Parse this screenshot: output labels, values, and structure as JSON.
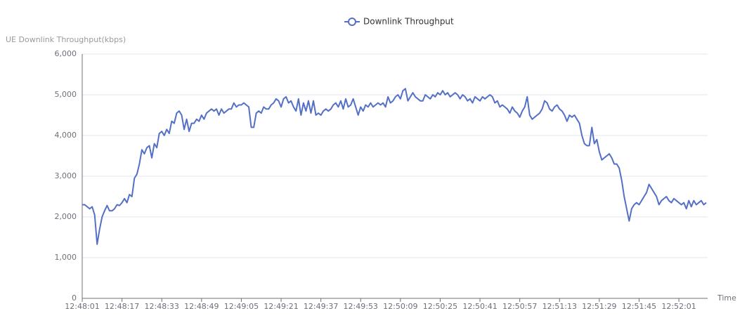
{
  "chart_data": {
    "type": "line",
    "y_axis_label": "UE Downlink Throughput(kbps)",
    "x_axis_label": "Time",
    "legend": "top",
    "grid": true,
    "ylim": [
      0,
      6000
    ],
    "yticks": [
      0,
      {
        "value": 1000,
        "label": "1,000"
      },
      {
        "value": 2000,
        "label": "2,000"
      },
      {
        "value": 3000,
        "label": "3,000"
      },
      {
        "value": 4000,
        "label": "4,000"
      },
      {
        "value": 5000,
        "label": "5,000"
      },
      {
        "value": 6000,
        "label": "6,000"
      }
    ],
    "categories": [
      "12:48:01",
      null,
      null,
      null,
      null,
      null,
      null,
      null,
      null,
      null,
      null,
      null,
      null,
      null,
      null,
      null,
      "12:48:17",
      null,
      null,
      null,
      null,
      null,
      null,
      null,
      null,
      null,
      null,
      null,
      null,
      null,
      null,
      null,
      "12:48:33",
      null,
      null,
      null,
      null,
      null,
      null,
      null,
      null,
      null,
      null,
      null,
      null,
      null,
      null,
      null,
      "12:48:49",
      null,
      null,
      null,
      null,
      null,
      null,
      null,
      null,
      null,
      null,
      null,
      null,
      null,
      null,
      null,
      "12:49:05",
      null,
      null,
      null,
      null,
      null,
      null,
      null,
      null,
      null,
      null,
      null,
      null,
      null,
      null,
      null,
      "12:49:21",
      null,
      null,
      null,
      null,
      null,
      null,
      null,
      null,
      null,
      null,
      null,
      null,
      null,
      null,
      null,
      "12:49:37",
      null,
      null,
      null,
      null,
      null,
      null,
      null,
      null,
      null,
      null,
      null,
      null,
      null,
      null,
      null,
      "12:49:53",
      null,
      null,
      null,
      null,
      null,
      null,
      null,
      null,
      null,
      null,
      null,
      null,
      null,
      null,
      null,
      "12:50:09",
      null,
      null,
      null,
      null,
      null,
      null,
      null,
      null,
      null,
      null,
      null,
      null,
      null,
      null,
      null,
      "12:50:25",
      null,
      null,
      null,
      null,
      null,
      null,
      null,
      null,
      null,
      null,
      null,
      null,
      null,
      null,
      null,
      "12:50:41",
      null,
      null,
      null,
      null,
      null,
      null,
      null,
      null,
      null,
      null,
      null,
      null,
      null,
      null,
      null,
      "12:50:57",
      null,
      null,
      null,
      null,
      null,
      null,
      null,
      null,
      null,
      null,
      null,
      null,
      null,
      null,
      null,
      "12:51:13",
      null,
      null,
      null,
      null,
      null,
      null,
      null,
      null,
      null,
      null,
      null,
      null,
      null,
      null,
      null,
      "12:51:29",
      null,
      null,
      null,
      null,
      null,
      null,
      null,
      null,
      null,
      null,
      null,
      null,
      null,
      null,
      null,
      "12:51:45",
      null,
      null,
      null,
      null,
      null,
      null,
      null,
      null,
      null,
      null,
      null,
      null,
      null,
      null,
      null,
      "12:52:01",
      null,
      null,
      null,
      null,
      null,
      null,
      null,
      null,
      null,
      null,
      null
    ],
    "series": [
      {
        "name": "Downlink Throughput",
        "color": "#5470c6",
        "values": [
          2300,
          2300,
          2250,
          2200,
          2250,
          2050,
          1330,
          1700,
          2000,
          2150,
          2280,
          2150,
          2150,
          2200,
          2300,
          2280,
          2350,
          2450,
          2350,
          2550,
          2500,
          2950,
          3050,
          3300,
          3650,
          3550,
          3700,
          3750,
          3450,
          3800,
          3700,
          4050,
          4100,
          4000,
          4150,
          4050,
          4350,
          4300,
          4550,
          4600,
          4500,
          4150,
          4400,
          4100,
          4300,
          4300,
          4400,
          4350,
          4500,
          4400,
          4550,
          4600,
          4650,
          4600,
          4650,
          4500,
          4650,
          4550,
          4600,
          4650,
          4650,
          4800,
          4700,
          4750,
          4750,
          4800,
          4750,
          4700,
          4200,
          4200,
          4550,
          4600,
          4550,
          4700,
          4650,
          4650,
          4750,
          4800,
          4900,
          4850,
          4700,
          4900,
          4950,
          4800,
          4850,
          4700,
          4600,
          4900,
          4500,
          4800,
          4600,
          4850,
          4550,
          4850,
          4500,
          4550,
          4500,
          4600,
          4650,
          4600,
          4650,
          4750,
          4800,
          4700,
          4850,
          4650,
          4900,
          4700,
          4750,
          4900,
          4700,
          4500,
          4700,
          4600,
          4750,
          4700,
          4800,
          4700,
          4750,
          4800,
          4750,
          4800,
          4700,
          4950,
          4800,
          4850,
          4950,
          5000,
          4900,
          5100,
          5150,
          4850,
          4950,
          5050,
          4950,
          4900,
          4850,
          4850,
          5000,
          4950,
          4900,
          5000,
          4950,
          5050,
          5000,
          5100,
          5000,
          5050,
          4950,
          5000,
          5050,
          5000,
          4900,
          5000,
          4950,
          4850,
          4900,
          4800,
          4950,
          4900,
          4850,
          4950,
          4900,
          4950,
          5000,
          4950,
          4800,
          4850,
          4700,
          4750,
          4700,
          4650,
          4550,
          4700,
          4600,
          4550,
          4450,
          4600,
          4700,
          4950,
          4500,
          4400,
          4450,
          4500,
          4550,
          4650,
          4850,
          4800,
          4650,
          4600,
          4700,
          4750,
          4650,
          4600,
          4500,
          4350,
          4500,
          4450,
          4500,
          4400,
          4300,
          4000,
          3800,
          3750,
          3750,
          4200,
          3800,
          3900,
          3600,
          3400,
          3450,
          3500,
          3550,
          3450,
          3300,
          3300,
          3200,
          2900,
          2500,
          2200,
          1900,
          2200,
          2300,
          2350,
          2300,
          2400,
          2500,
          2600,
          2800,
          2700,
          2600,
          2500,
          2300,
          2400,
          2450,
          2500,
          2400,
          2350,
          2450,
          2400,
          2350,
          2300,
          2350,
          2200,
          2400,
          2250,
          2400,
          2300,
          2350,
          2400,
          2300,
          2350
        ]
      }
    ]
  }
}
